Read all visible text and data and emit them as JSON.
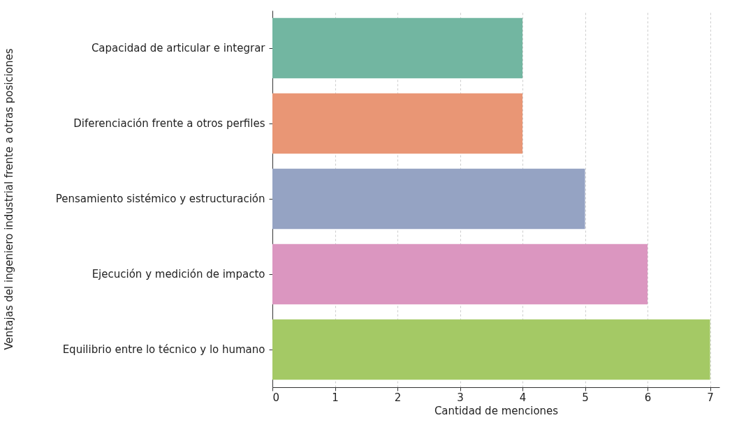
{
  "chart_data": {
    "type": "bar",
    "orientation": "horizontal",
    "xlabel": "Cantidad de menciones",
    "ylabel": "Ventajas del ingeniero industrial frente a otras posiciones",
    "categories": [
      "Capacidad de articular e integrar",
      "Diferenciación frente a otros perfiles",
      "Pensamiento sistémico y estructuración",
      "Ejecución y medición de impacto",
      "Equilibrio entre lo técnico y lo humano"
    ],
    "values": [
      4,
      4,
      5,
      6,
      7
    ],
    "colors": [
      "#72b6a1",
      "#e99675",
      "#95a3c3",
      "#db96c0",
      "#a4c965"
    ],
    "xlim": [
      0,
      7.15
    ],
    "xticks": [
      0,
      1,
      2,
      3,
      4,
      5,
      6,
      7
    ],
    "grid": "x"
  }
}
